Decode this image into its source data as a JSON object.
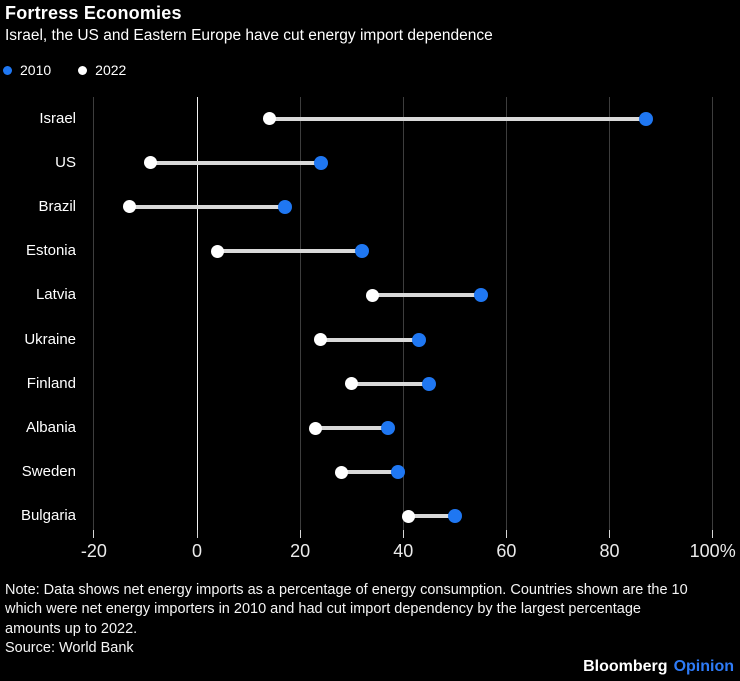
{
  "chart_data": {
    "type": "dumbbell",
    "title": "Fortress Economies",
    "subtitle": "Israel, the US and Eastern Europe have cut energy import dependence",
    "unit": "%",
    "categories": [
      "Israel",
      "US",
      "Brazil",
      "Estonia",
      "Latvia",
      "Ukraine",
      "Finland",
      "Albania",
      "Sweden",
      "Bulgaria"
    ],
    "series": [
      {
        "name": "2010",
        "color": "#1f77f2",
        "values": [
          87,
          24,
          17,
          32,
          55,
          43,
          45,
          37,
          39,
          50
        ]
      },
      {
        "name": "2022",
        "color": "#ffffff",
        "values": [
          14,
          -9,
          -13,
          4,
          34,
          24,
          30,
          23,
          28,
          41
        ]
      }
    ],
    "x_ticks": [
      -20,
      0,
      20,
      40,
      60,
      80,
      100
    ],
    "x_tick_labels": [
      "-20",
      "0",
      "20",
      "40",
      "60",
      "80",
      "100%"
    ],
    "xlim": [
      -38,
      105
    ],
    "grid": "vertical-only",
    "legend_position": "top-left"
  },
  "note": {
    "lines": [
      "Note: Data shows net energy imports as a percentage of energy consumption. Countries shown are the 10",
      "which were net energy importers in 2010 and had cut import dependency by the largest percentage",
      "amounts up to 2022."
    ],
    "source": "Source: World Bank"
  },
  "footer": {
    "brand": "Bloomberg",
    "edition": "Opinion"
  },
  "colors": {
    "background": "#000000",
    "text": "#ffffff",
    "blue": "#1f77f2",
    "opinion_blue": "#2e7bf7",
    "gridline": "#3d3d3d",
    "zero_line": "#f2f2f2",
    "tick": "#d6d6d6",
    "axis_label": "#ebebeb",
    "connector": "#d9d9d9"
  }
}
